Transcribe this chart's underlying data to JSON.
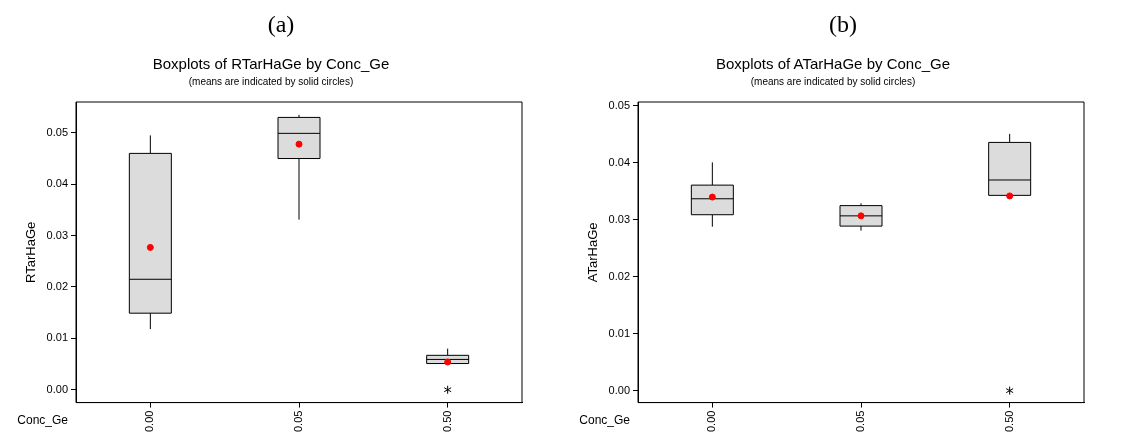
{
  "chart_data": [
    {
      "type": "box",
      "annotations": [
        "(a)"
      ],
      "title": "Boxplots of RTarHaGe by Conc_Ge",
      "subtitle": "(means are indicated by solid circles)",
      "xlabel": "Conc_Ge",
      "ylabel": "RTarHaGe",
      "categories": [
        "0.00",
        "0.05",
        "0.50"
      ],
      "ylim": [
        -0.0025,
        0.056
      ],
      "yticks": [
        {
          "value": 0,
          "label": "0.00"
        },
        {
          "value": 0.01,
          "label": "0.01"
        },
        {
          "value": 0.02,
          "label": "0.02"
        },
        {
          "value": 0.03,
          "label": "0.03"
        },
        {
          "value": 0.04,
          "label": "0.04"
        },
        {
          "value": 0.05,
          "label": "0.05"
        }
      ],
      "grid": false,
      "legend": false,
      "series": [
        {
          "type": "box",
          "color": "#dcdcdc",
          "boxes": [
            {
              "low": 0.0118,
              "q1": 0.0149,
              "median": 0.0215,
              "q3": 0.046,
              "high": 0.0495
            },
            {
              "low": 0.0331,
              "q1": 0.045,
              "median": 0.0499,
              "q3": 0.053,
              "high": 0.0535
            },
            {
              "low": 0.0051,
              "q1": 0.0051,
              "median": 0.0059,
              "q3": 0.0067,
              "high": 0.008,
              "outliers": [
                0
              ]
            }
          ]
        },
        {
          "type": "scatter",
          "color": "#ff0000",
          "marker": "circle",
          "x": [
            "0.00",
            "0.05",
            "0.50"
          ],
          "values": [
            0.0277,
            0.0478,
            0.0054
          ]
        }
      ]
    },
    {
      "type": "box",
      "annotations": [
        "(b)"
      ],
      "title": "Boxplots of ATarHaGe by Conc_Ge",
      "subtitle": "(means are indicated by solid circles)",
      "xlabel": "Conc_Ge",
      "ylabel": "ATarHaGe",
      "categories": [
        "0.00",
        "0.05",
        "0.50"
      ],
      "ylim": [
        -0.0021,
        0.0507
      ],
      "yticks": [
        {
          "value": 0,
          "label": "0.00"
        },
        {
          "value": 0.01,
          "label": "0.01"
        },
        {
          "value": 0.02,
          "label": "0.02"
        },
        {
          "value": 0.03,
          "label": "0.03"
        },
        {
          "value": 0.04,
          "label": "0.04"
        },
        {
          "value": 0.05,
          "label": "0.05"
        }
      ],
      "grid": false,
      "legend": false,
      "series": [
        {
          "type": "box",
          "color": "#dcdcdc",
          "boxes": [
            {
              "low": 0.0288,
              "q1": 0.0309,
              "median": 0.0337,
              "q3": 0.0361,
              "high": 0.0401
            },
            {
              "low": 0.0281,
              "q1": 0.0289,
              "median": 0.0307,
              "q3": 0.0325,
              "high": 0.0329
            },
            {
              "low": 0.0343,
              "q1": 0.0343,
              "median": 0.037,
              "q3": 0.0436,
              "high": 0.0451,
              "outliers": [
                0
              ]
            }
          ]
        },
        {
          "type": "scatter",
          "color": "#ff0000",
          "marker": "circle",
          "x": [
            "0.00",
            "0.05",
            "0.50"
          ],
          "values": [
            0.034,
            0.0307,
            0.0342
          ]
        }
      ]
    }
  ]
}
